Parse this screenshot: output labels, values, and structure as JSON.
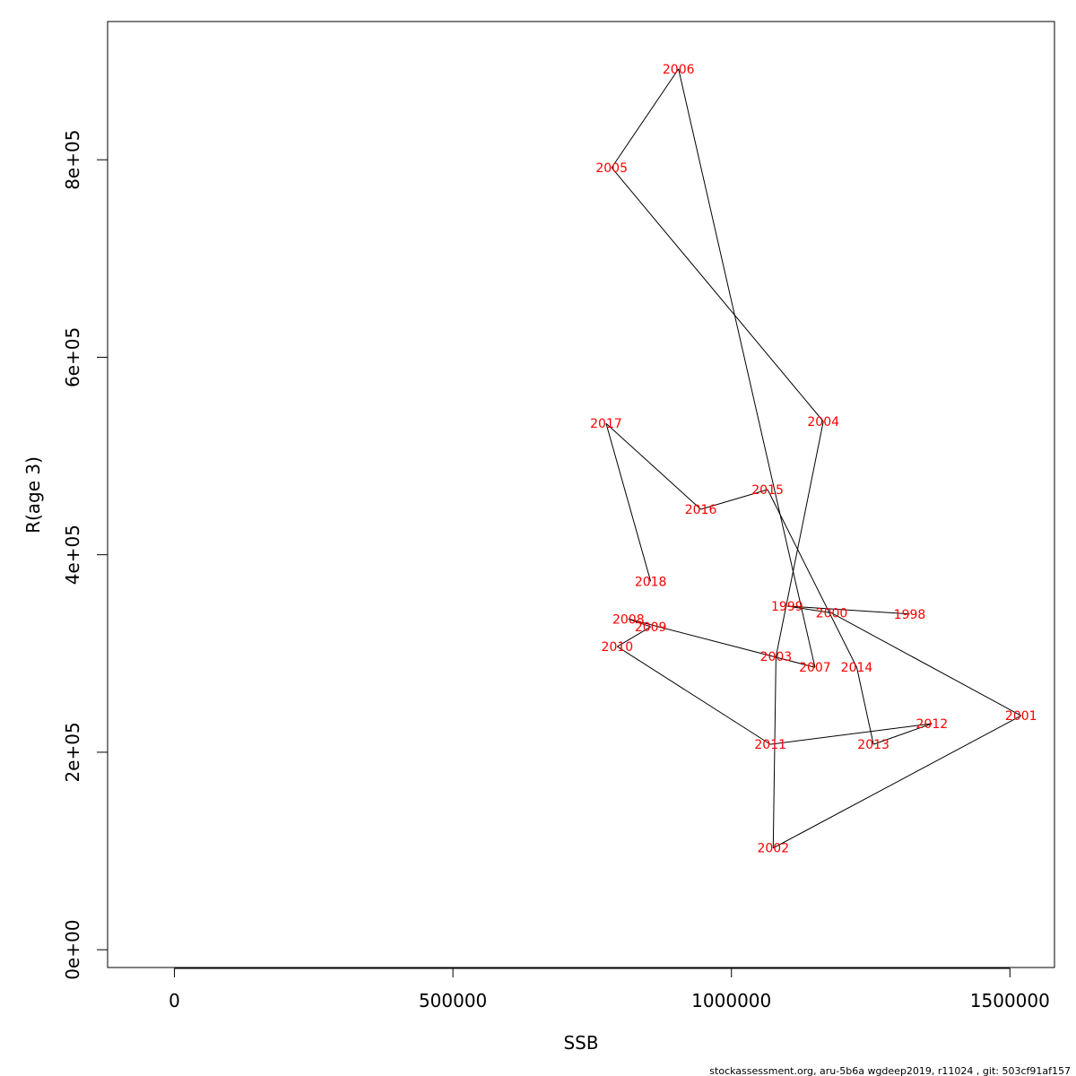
{
  "chart_data": {
    "type": "line",
    "xlabel": "SSB",
    "ylabel": "R(age 3)",
    "xlim": [
      -120000,
      1580000
    ],
    "ylim": [
      -18000,
      940000
    ],
    "x_ticks": [
      0,
      500000,
      1000000,
      1500000
    ],
    "x_tick_labels": [
      "0",
      "500000",
      "1000000",
      "1500000"
    ],
    "y_ticks": [
      0,
      200000,
      400000,
      600000,
      800000
    ],
    "y_tick_labels": [
      "0e+00",
      "2e+05",
      "4e+05",
      "6e+05",
      "8e+05"
    ],
    "grid": false,
    "line_color": "#000000",
    "label_color": "#ff0000",
    "points": [
      {
        "label": "1998",
        "x": 1320000,
        "y": 340000
      },
      {
        "label": "1999",
        "x": 1100000,
        "y": 348000
      },
      {
        "label": "2000",
        "x": 1180000,
        "y": 341000
      },
      {
        "label": "2001",
        "x": 1520000,
        "y": 237000
      },
      {
        "label": "2002",
        "x": 1075000,
        "y": 103000
      },
      {
        "label": "2003",
        "x": 1080000,
        "y": 297000
      },
      {
        "label": "2004",
        "x": 1165000,
        "y": 535000
      },
      {
        "label": "2005",
        "x": 785000,
        "y": 792000
      },
      {
        "label": "2006",
        "x": 905000,
        "y": 892000
      },
      {
        "label": "2007",
        "x": 1150000,
        "y": 286000
      },
      {
        "label": "2008",
        "x": 815000,
        "y": 335000
      },
      {
        "label": "2009",
        "x": 855000,
        "y": 327000
      },
      {
        "label": "2010",
        "x": 795000,
        "y": 307000
      },
      {
        "label": "2011",
        "x": 1070000,
        "y": 208000
      },
      {
        "label": "2012",
        "x": 1360000,
        "y": 229000
      },
      {
        "label": "2013",
        "x": 1255000,
        "y": 208000
      },
      {
        "label": "2014",
        "x": 1225000,
        "y": 286000
      },
      {
        "label": "2015",
        "x": 1065000,
        "y": 466000
      },
      {
        "label": "2016",
        "x": 945000,
        "y": 446000
      },
      {
        "label": "2017",
        "x": 775000,
        "y": 533000
      },
      {
        "label": "2018",
        "x": 855000,
        "y": 373000
      }
    ]
  },
  "footer": "stockassessment.org, aru-5b6a  wgdeep2019, r11024 , git: 503cf91af157"
}
